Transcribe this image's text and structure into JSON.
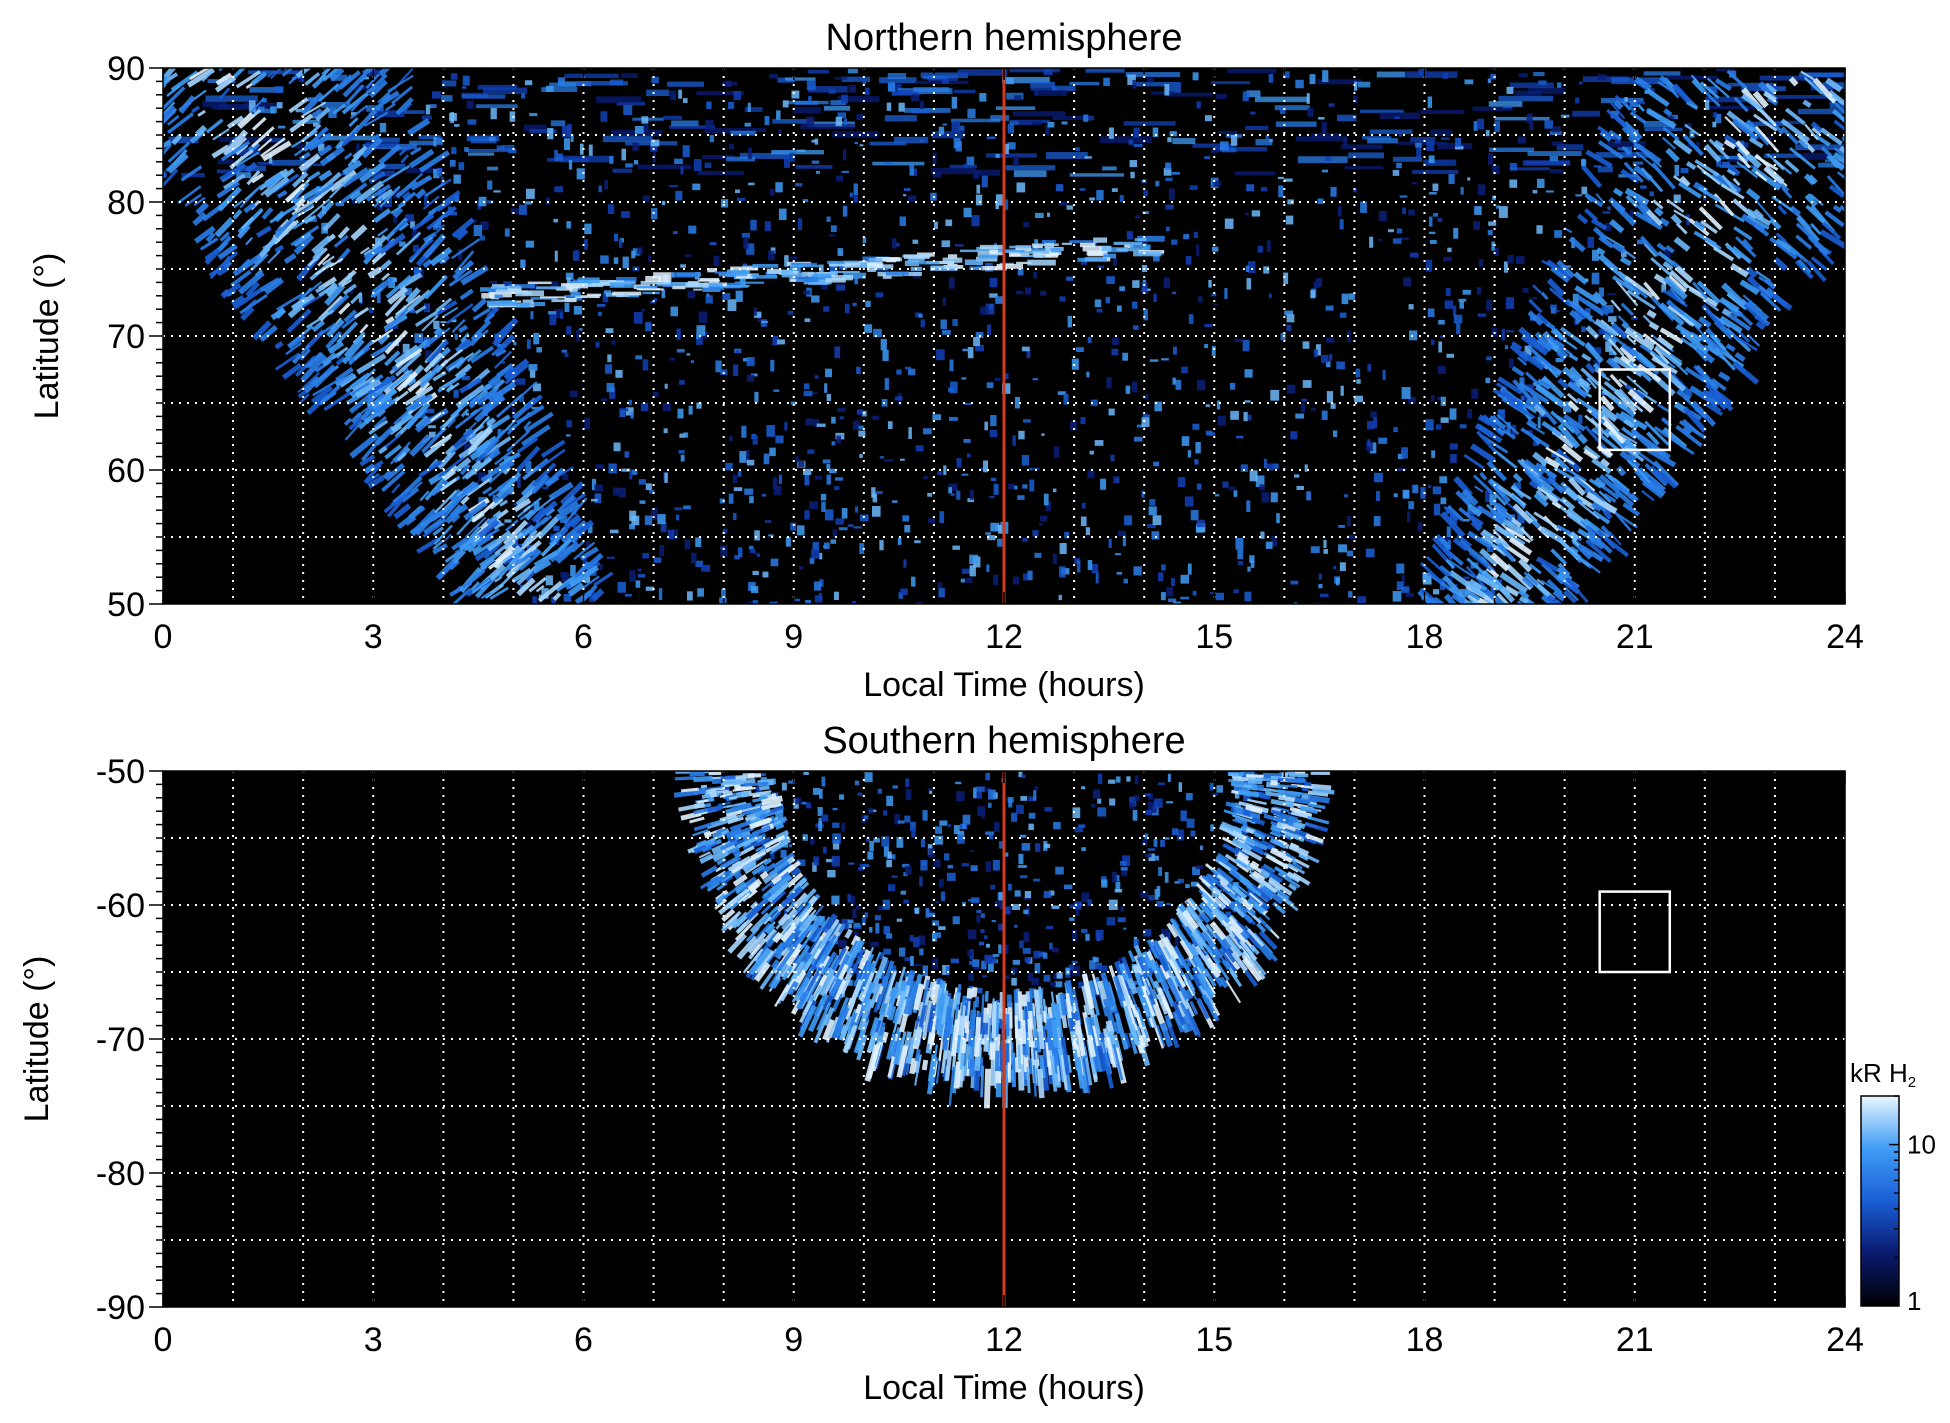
{
  "chart_data": [
    {
      "type": "heatmap",
      "title": "Northern hemisphere",
      "xlabel": "Local Time (hours)",
      "ylabel": "Latitude (°)",
      "xlim": [
        0,
        24
      ],
      "ylim": [
        50,
        90
      ],
      "xticks": [
        "0",
        "3",
        "6",
        "9",
        "12",
        "15",
        "18",
        "21",
        "24"
      ],
      "yticks": [
        "50",
        "60",
        "70",
        "80",
        "90"
      ],
      "grid": true,
      "noon_line_x": 12,
      "box": {
        "x": [
          20.5,
          21.5
        ],
        "y": [
          61.5,
          67.5
        ]
      },
      "emission_zones": [
        {
          "name": "dawn-arc",
          "x_at_lat90": 0.8,
          "x_at_lat50": 5.2,
          "width": 1.1
        },
        {
          "name": "dusk-arc",
          "x_at_lat90": 23.2,
          "x_at_lat50": 18.8,
          "width": 1.1
        },
        {
          "name": "polar-band",
          "x": [
            4.5,
            14
          ],
          "y": [
            73,
            77
          ]
        }
      ]
    },
    {
      "type": "heatmap",
      "title": "Southern hemisphere",
      "xlabel": "Local Time (hours)",
      "ylabel": "Latitude (°)",
      "xlim": [
        0,
        24
      ],
      "ylim": [
        -90,
        -50
      ],
      "xticks": [
        "0",
        "3",
        "6",
        "9",
        "12",
        "15",
        "18",
        "21",
        "24"
      ],
      "yticks": [
        "-90",
        "-80",
        "-70",
        "-60",
        "-50"
      ],
      "grid": true,
      "noon_line_x": 12,
      "box": {
        "x": [
          20.5,
          21.5
        ],
        "y": [
          -65,
          -59
        ]
      },
      "emission_zones": [
        {
          "name": "auroral-oval",
          "center_x": 12,
          "x_half_width_at_lat50": 4.2,
          "lat_min": -72.5,
          "oval_width_deg": 6
        }
      ]
    }
  ],
  "colorbar": {
    "label": "kR H",
    "label_subscript": "2",
    "ticks": [
      {
        "value": 1,
        "label": "1"
      },
      {
        "value": 10,
        "label": "10"
      }
    ],
    "range": [
      1,
      20
    ],
    "scale": "log",
    "colors": [
      "#000000",
      "#0a1a6e",
      "#1a5fd6",
      "#3f9cf5",
      "#e8f6ff"
    ]
  },
  "colors": {
    "noon_line": "#d43a1c",
    "grid": "#ffffff",
    "box": "#ffffff",
    "background": "#000000"
  }
}
